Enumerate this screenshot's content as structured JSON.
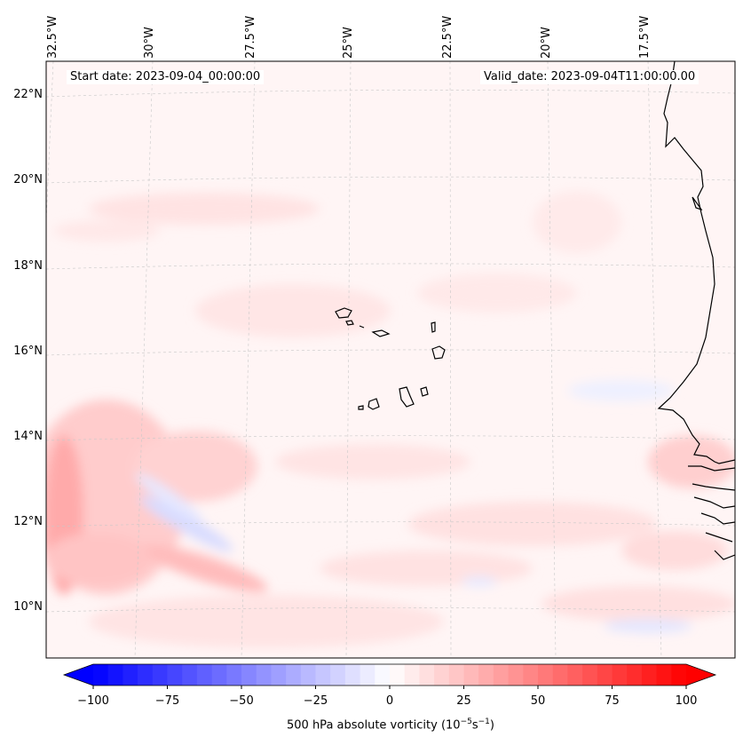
{
  "map": {
    "title_left": "Start date: 2023-09-04_00:00:00",
    "title_right": "Valid_date: 2023-09-04T11:00:00.00",
    "lon_labels": [
      "32.5°W",
      "30°W",
      "27.5°W",
      "25°W",
      "22.5°W",
      "20°W",
      "17.5°W"
    ],
    "lat_labels": [
      "22°N",
      "20°N",
      "18°N",
      "16°N",
      "14°N",
      "12°N",
      "10°N"
    ],
    "variable": "500 hPa absolute vorticity",
    "units_prefix": "(10",
    "units_exp1": "−5",
    "units_mid": "s",
    "units_exp2": "−1",
    "units_suffix": ")"
  },
  "colorbar": {
    "min": -100,
    "max": 100,
    "levels": 40,
    "tick_labels": [
      "−100",
      "−75",
      "−50",
      "−25",
      "0",
      "25",
      "50",
      "75",
      "100"
    ],
    "tick_values": [
      -100,
      -75,
      -50,
      -25,
      0,
      25,
      50,
      75,
      100
    ],
    "cmap": "bwr",
    "colors": {
      "negative": "#0000ff",
      "zero": "#ffffff",
      "positive": "#ff0000"
    }
  },
  "features": {
    "coastline": "West Africa (Mauritania, Senegal, Gambia, Guinea-Bissau)",
    "islands": "Cape Verde"
  }
}
